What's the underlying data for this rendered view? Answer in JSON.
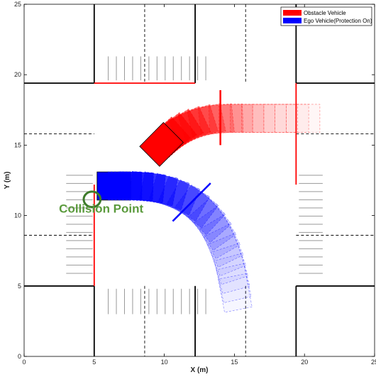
{
  "chart_data": {
    "type": "scatter",
    "title": "",
    "xlabel": "X (m)",
    "ylabel": "Y (m)",
    "xlim": [
      0,
      25
    ],
    "ylim": [
      0,
      25
    ],
    "xticks": [
      0,
      5,
      10,
      15,
      20,
      25
    ],
    "yticks": [
      0,
      5,
      10,
      15,
      20,
      25
    ],
    "xtick_labels": [
      "0",
      "5",
      "10",
      "15",
      "20",
      "25"
    ],
    "ytick_labels": [
      "0",
      "5",
      "10",
      "15",
      "20",
      "25"
    ],
    "grid": false,
    "legend_position": "top-right",
    "series": [
      {
        "name": "Obstacle Vehicle",
        "color": "#ff0000",
        "vehicle_length": 2.4,
        "vehicle_width": 2.0,
        "trajectory": [
          {
            "x": 19.9,
            "y": 16.9,
            "heading": 180
          },
          {
            "x": 19.1,
            "y": 16.9,
            "heading": 180
          },
          {
            "x": 18.3,
            "y": 16.9,
            "heading": 180
          },
          {
            "x": 17.5,
            "y": 16.9,
            "heading": 180
          },
          {
            "x": 16.7,
            "y": 16.9,
            "heading": 180
          },
          {
            "x": 15.9,
            "y": 16.9,
            "heading": 180
          },
          {
            "x": 15.1,
            "y": 16.9,
            "heading": 180
          },
          {
            "x": 14.4,
            "y": 16.88,
            "heading": 182
          },
          {
            "x": 13.7,
            "y": 16.82,
            "heading": 186
          },
          {
            "x": 13.0,
            "y": 16.72,
            "heading": 192
          },
          {
            "x": 12.4,
            "y": 16.56,
            "heading": 198
          },
          {
            "x": 11.8,
            "y": 16.34,
            "heading": 205
          },
          {
            "x": 11.25,
            "y": 16.08,
            "heading": 212
          },
          {
            "x": 10.75,
            "y": 15.78,
            "heading": 218
          },
          {
            "x": 10.3,
            "y": 15.45,
            "heading": 222
          },
          {
            "x": 9.8,
            "y": 15.05,
            "heading": 225
          }
        ],
        "boundary_mark": {
          "x": [
            14.0,
            14.0
          ],
          "y": [
            15.0,
            18.9
          ]
        }
      },
      {
        "name": "Ego Vehicle(Protection On)",
        "color": "#0000ff",
        "vehicle_length": 2.4,
        "vehicle_width": 2.0,
        "trajectory": [
          {
            "x": 6.4,
            "y": 12.1,
            "heading": 0
          },
          {
            "x": 7.2,
            "y": 12.1,
            "heading": 0
          },
          {
            "x": 8.0,
            "y": 12.08,
            "heading": -2
          },
          {
            "x": 8.8,
            "y": 12.02,
            "heading": -6
          },
          {
            "x": 9.6,
            "y": 11.9,
            "heading": -11
          },
          {
            "x": 10.35,
            "y": 11.7,
            "heading": -17
          },
          {
            "x": 11.05,
            "y": 11.42,
            "heading": -23
          },
          {
            "x": 11.7,
            "y": 11.07,
            "heading": -30
          },
          {
            "x": 12.3,
            "y": 10.65,
            "heading": -37
          },
          {
            "x": 12.8,
            "y": 10.18,
            "heading": -43
          },
          {
            "x": 13.25,
            "y": 9.65,
            "heading": -49
          },
          {
            "x": 13.62,
            "y": 9.08,
            "heading": -55
          },
          {
            "x": 13.95,
            "y": 8.48,
            "heading": -60
          },
          {
            "x": 14.22,
            "y": 7.85,
            "heading": -64
          },
          {
            "x": 14.45,
            "y": 7.2,
            "heading": -68
          },
          {
            "x": 14.65,
            "y": 6.55,
            "heading": -72
          },
          {
            "x": 14.82,
            "y": 5.88,
            "heading": -75
          },
          {
            "x": 14.95,
            "y": 5.2,
            "heading": -77
          },
          {
            "x": 15.05,
            "y": 4.5,
            "heading": -79
          }
        ],
        "boundary_mark": {
          "x": [
            10.6,
            13.3
          ],
          "y": [
            9.6,
            12.3
          ]
        }
      }
    ],
    "annotations": [
      {
        "text": "Collision Point",
        "x": 5.5,
        "y": 10.2,
        "color": "#5a9a3c"
      }
    ],
    "collision_marker": {
      "x": 4.85,
      "y": 11.15,
      "rx": 0.6,
      "ry": 0.55,
      "color": "#3d7a2a"
    },
    "colors": {
      "road_edge": "#000000",
      "lane_dash": "#000000",
      "crosswalk": "#999999",
      "stop_line": "#ff0000",
      "collision": "#3d7a2a"
    }
  }
}
